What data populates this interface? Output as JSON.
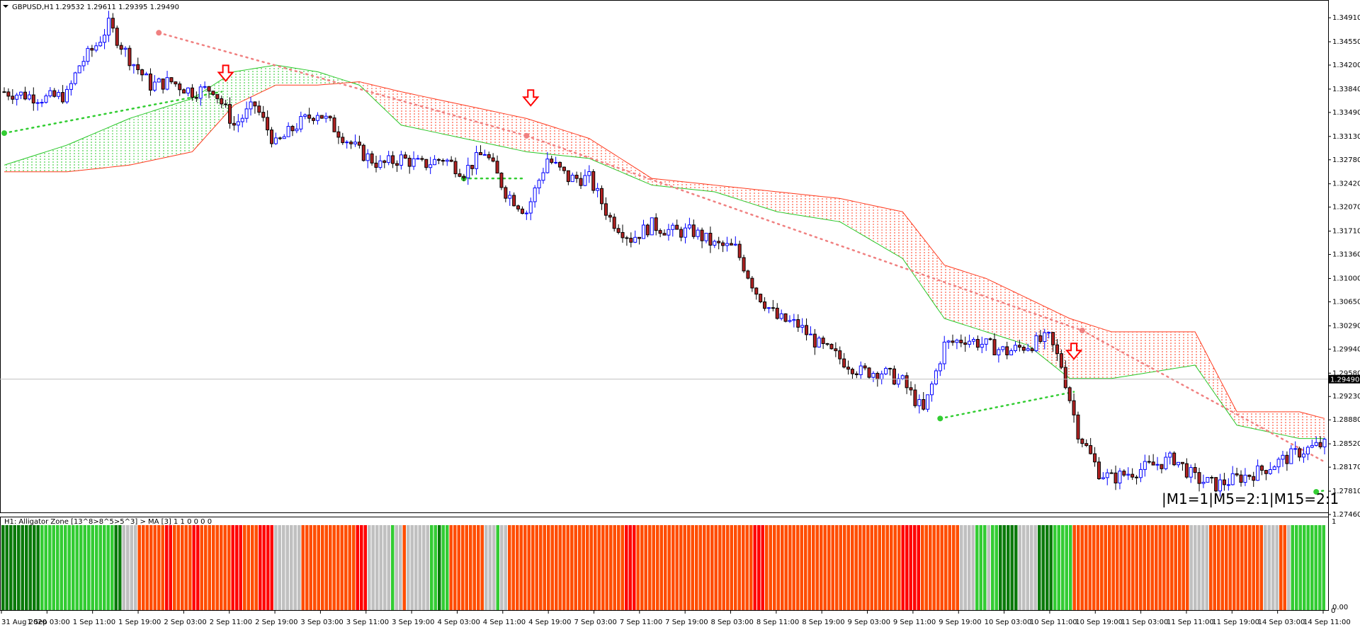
{
  "window": {
    "title": "GBPUSD,H1",
    "ohlc": "1.29532 1.29611 1.29395 1.29490",
    "menu_icon": "triangle-down-icon"
  },
  "indicator_panel": {
    "title": "H1: Alligator Zone [13^8>8^5>5^3] > MA [3]  1 1 0 0 0 0",
    "scale_top": "1",
    "scale_bottom": "0.00",
    "scale_bottom_alt": "0"
  },
  "timeframe_label": "|M1=1|M5=2:1|M15=2:1",
  "colors": {
    "bull_body": "#ffffff",
    "bull_outline": "#0000ff",
    "bear_body": "#b22222",
    "cloud_bear": "#ff3b1f",
    "cloud_bull": "#28c828",
    "dot_red": "#f08080",
    "dot_green": "#32cd32",
    "arrow_red": "#ff0000",
    "bar_darkgreen": "#0a7a0a",
    "bar_green": "#33cc33",
    "bar_gray": "#c0c0c0",
    "bar_orange": "#ff4d00",
    "bar_red": "#ff0000"
  },
  "chart_data": {
    "type": "candlestick",
    "symbol": "GBPUSD",
    "timeframe": "H1",
    "current_price": "1.29490",
    "ylim": [
      1.2746,
      1.3507
    ],
    "y_ticks": [
      "1.34910",
      "1.34550",
      "1.34200",
      "1.33840",
      "1.33490",
      "1.33130",
      "1.32780",
      "1.32420",
      "1.32070",
      "1.31710",
      "1.31360",
      "1.31000",
      "1.30650",
      "1.30290",
      "1.29940",
      "1.29580",
      "1.29230",
      "1.28880",
      "1.28520",
      "1.28170",
      "1.27810",
      "1.27460"
    ],
    "x_ticks": [
      "31 Aug 2020",
      "1 Sep 03:00",
      "1 Sep 11:00",
      "1 Sep 19:00",
      "2 Sep 03:00",
      "2 Sep 11:00",
      "2 Sep 19:00",
      "3 Sep 03:00",
      "3 Sep 11:00",
      "3 Sep 19:00",
      "4 Sep 03:00",
      "4 Sep 11:00",
      "4 Sep 19:00",
      "7 Sep 03:00",
      "7 Sep 11:00",
      "7 Sep 19:00",
      "8 Sep 03:00",
      "8 Sep 11:00",
      "8 Sep 19:00",
      "9 Sep 03:00",
      "9 Sep 11:00",
      "9 Sep 19:00",
      "10 Sep 03:00",
      "10 Sep 11:00",
      "10 Sep 19:00",
      "11 Sep 03:00",
      "11 Sep 11:00",
      "11 Sep 19:00",
      "14 Sep 03:00",
      "14 Sep 11:00"
    ],
    "close_path": [
      [
        0,
        1.338
      ],
      [
        10,
        1.337
      ],
      [
        15,
        1.3375
      ],
      [
        18,
        1.342
      ],
      [
        22,
        1.345
      ],
      [
        25,
        1.348
      ],
      [
        30,
        1.343
      ],
      [
        35,
        1.339
      ],
      [
        40,
        1.3395
      ],
      [
        45,
        1.338
      ],
      [
        50,
        1.3385
      ],
      [
        55,
        1.333
      ],
      [
        60,
        1.336
      ],
      [
        65,
        1.33
      ],
      [
        70,
        1.333
      ],
      [
        75,
        1.335
      ],
      [
        80,
        1.332
      ],
      [
        85,
        1.329
      ],
      [
        90,
        1.327
      ],
      [
        95,
        1.328
      ],
      [
        100,
        1.327
      ],
      [
        105,
        1.328
      ],
      [
        110,
        1.326
      ],
      [
        115,
        1.329
      ],
      [
        120,
        1.323
      ],
      [
        125,
        1.32
      ],
      [
        130,
        1.328
      ],
      [
        135,
        1.325
      ],
      [
        140,
        1.325
      ],
      [
        145,
        1.319
      ],
      [
        150,
        1.316
      ],
      [
        155,
        1.318
      ],
      [
        160,
        1.317
      ],
      [
        165,
        1.317
      ],
      [
        170,
        1.315
      ],
      [
        175,
        1.3145
      ],
      [
        180,
        1.308
      ],
      [
        185,
        1.304
      ],
      [
        190,
        1.303
      ],
      [
        195,
        1.3
      ],
      [
        200,
        1.298
      ],
      [
        205,
        1.296
      ],
      [
        210,
        1.296
      ],
      [
        215,
        1.2945
      ],
      [
        220,
        1.29
      ],
      [
        225,
        1.3
      ],
      [
        230,
        1.301
      ],
      [
        235,
        1.3
      ],
      [
        240,
        1.299
      ],
      [
        245,
        1.3
      ],
      [
        250,
        1.301
      ],
      [
        253,
        1.297
      ],
      [
        257,
        1.287
      ],
      [
        262,
        1.281
      ],
      [
        265,
        1.28
      ],
      [
        270,
        1.281
      ],
      [
        275,
        1.282
      ],
      [
        280,
        1.283
      ],
      [
        285,
        1.28
      ],
      [
        290,
        1.279
      ],
      [
        295,
        1.28
      ],
      [
        300,
        1.281
      ],
      [
        305,
        1.2825
      ],
      [
        310,
        1.284
      ],
      [
        315,
        1.285
      ]
    ],
    "cloud_green_line": [
      [
        0,
        1.327
      ],
      [
        15,
        1.33
      ],
      [
        30,
        1.334
      ],
      [
        45,
        1.337
      ],
      [
        55,
        1.341
      ],
      [
        65,
        1.342
      ],
      [
        75,
        1.341
      ],
      [
        85,
        1.339
      ],
      [
        95,
        1.333
      ],
      [
        110,
        1.331
      ],
      [
        125,
        1.329
      ],
      [
        140,
        1.328
      ],
      [
        155,
        1.324
      ],
      [
        170,
        1.323
      ],
      [
        185,
        1.32
      ],
      [
        200,
        1.3185
      ],
      [
        215,
        1.313
      ],
      [
        225,
        1.304
      ],
      [
        235,
        1.302
      ],
      [
        245,
        1.3
      ],
      [
        255,
        1.295
      ],
      [
        265,
        1.295
      ],
      [
        275,
        1.296
      ],
      [
        285,
        1.297
      ],
      [
        295,
        1.288
      ],
      [
        310,
        1.286
      ],
      [
        316,
        1.286
      ]
    ],
    "cloud_red_line": [
      [
        0,
        1.326
      ],
      [
        15,
        1.326
      ],
      [
        30,
        1.327
      ],
      [
        45,
        1.329
      ],
      [
        55,
        1.336
      ],
      [
        65,
        1.339
      ],
      [
        75,
        1.339
      ],
      [
        85,
        1.3395
      ],
      [
        95,
        1.338
      ],
      [
        110,
        1.336
      ],
      [
        125,
        1.334
      ],
      [
        140,
        1.331
      ],
      [
        155,
        1.325
      ],
      [
        170,
        1.324
      ],
      [
        185,
        1.323
      ],
      [
        200,
        1.322
      ],
      [
        215,
        1.32
      ],
      [
        225,
        1.312
      ],
      [
        235,
        1.31
      ],
      [
        245,
        1.307
      ],
      [
        255,
        1.304
      ],
      [
        265,
        1.302
      ],
      [
        275,
        1.302
      ],
      [
        285,
        1.302
      ],
      [
        295,
        1.29
      ],
      [
        310,
        1.29
      ],
      [
        316,
        1.289
      ]
    ],
    "signal_arrows": [
      {
        "bar": 53,
        "price": 1.3392
      },
      {
        "bar": 126,
        "price": 1.3355
      },
      {
        "bar": 256,
        "price": 1.2975
      }
    ],
    "swing_dots": [
      {
        "type": "high",
        "bar": 37,
        "price": 1.34685,
        "to_bar": 125,
        "to_price": 1.3314
      },
      {
        "type": "high",
        "bar": 125,
        "price": 1.3314,
        "to_bar": 258,
        "to_price": 1.3022
      },
      {
        "type": "high",
        "bar": 258,
        "price": 1.3022,
        "to_bar": 316,
        "to_price": 1.2825
      },
      {
        "type": "low",
        "bar": 0,
        "price": 1.3318,
        "to_bar": 52,
        "to_price": 1.338
      },
      {
        "type": "low",
        "bar": 110,
        "price": 1.325,
        "to_bar": 124,
        "to_price": 1.325
      },
      {
        "type": "low",
        "bar": 224,
        "price": 1.289,
        "to_bar": 256,
        "to_price": 1.293
      },
      {
        "type": "low",
        "bar": 314,
        "price": 1.278,
        "to_bar": 316,
        "to_price": 1.2782
      }
    ],
    "zone_segments": [
      {
        "color": "darkgreen",
        "count": 10
      },
      {
        "color": "green",
        "count": 19
      },
      {
        "color": "darkgreen",
        "count": 2
      },
      {
        "color": "gray",
        "count": 4
      },
      {
        "color": "orange",
        "count": 7
      },
      {
        "color": "red",
        "count": 2
      },
      {
        "color": "orange",
        "count": 5
      },
      {
        "color": "red",
        "count": 2
      },
      {
        "color": "orange",
        "count": 8
      },
      {
        "color": "red",
        "count": 3
      },
      {
        "color": "orange",
        "count": 4
      },
      {
        "color": "red",
        "count": 4
      },
      {
        "color": "gray",
        "count": 7
      },
      {
        "color": "orange",
        "count": 14
      },
      {
        "color": "red",
        "count": 3
      },
      {
        "color": "gray",
        "count": 6
      },
      {
        "color": "green",
        "count": 1
      },
      {
        "color": "gray",
        "count": 2
      },
      {
        "color": "orange",
        "count": 1
      },
      {
        "color": "gray",
        "count": 6
      },
      {
        "color": "green",
        "count": 2
      },
      {
        "color": "darkgreen",
        "count": 1
      },
      {
        "color": "green",
        "count": 2
      },
      {
        "color": "orange",
        "count": 9
      },
      {
        "color": "gray",
        "count": 3
      },
      {
        "color": "green",
        "count": 1
      },
      {
        "color": "gray",
        "count": 2
      },
      {
        "color": "orange",
        "count": 30
      },
      {
        "color": "red",
        "count": 3
      },
      {
        "color": "orange",
        "count": 30
      },
      {
        "color": "red",
        "count": 3
      },
      {
        "color": "orange",
        "count": 35
      },
      {
        "color": "red",
        "count": 5
      },
      {
        "color": "orange",
        "count": 10
      },
      {
        "color": "gray",
        "count": 4
      },
      {
        "color": "green",
        "count": 3
      },
      {
        "color": "gray",
        "count": 1
      },
      {
        "color": "green",
        "count": 2
      },
      {
        "color": "darkgreen",
        "count": 5
      },
      {
        "color": "gray",
        "count": 5
      },
      {
        "color": "darkgreen",
        "count": 4
      },
      {
        "color": "green",
        "count": 5
      },
      {
        "color": "orange",
        "count": 30
      },
      {
        "color": "gray",
        "count": 5
      },
      {
        "color": "orange",
        "count": 14
      },
      {
        "color": "gray",
        "count": 4
      },
      {
        "color": "orange",
        "count": 2
      },
      {
        "color": "gray",
        "count": 1
      },
      {
        "color": "green",
        "count": 9
      }
    ]
  }
}
